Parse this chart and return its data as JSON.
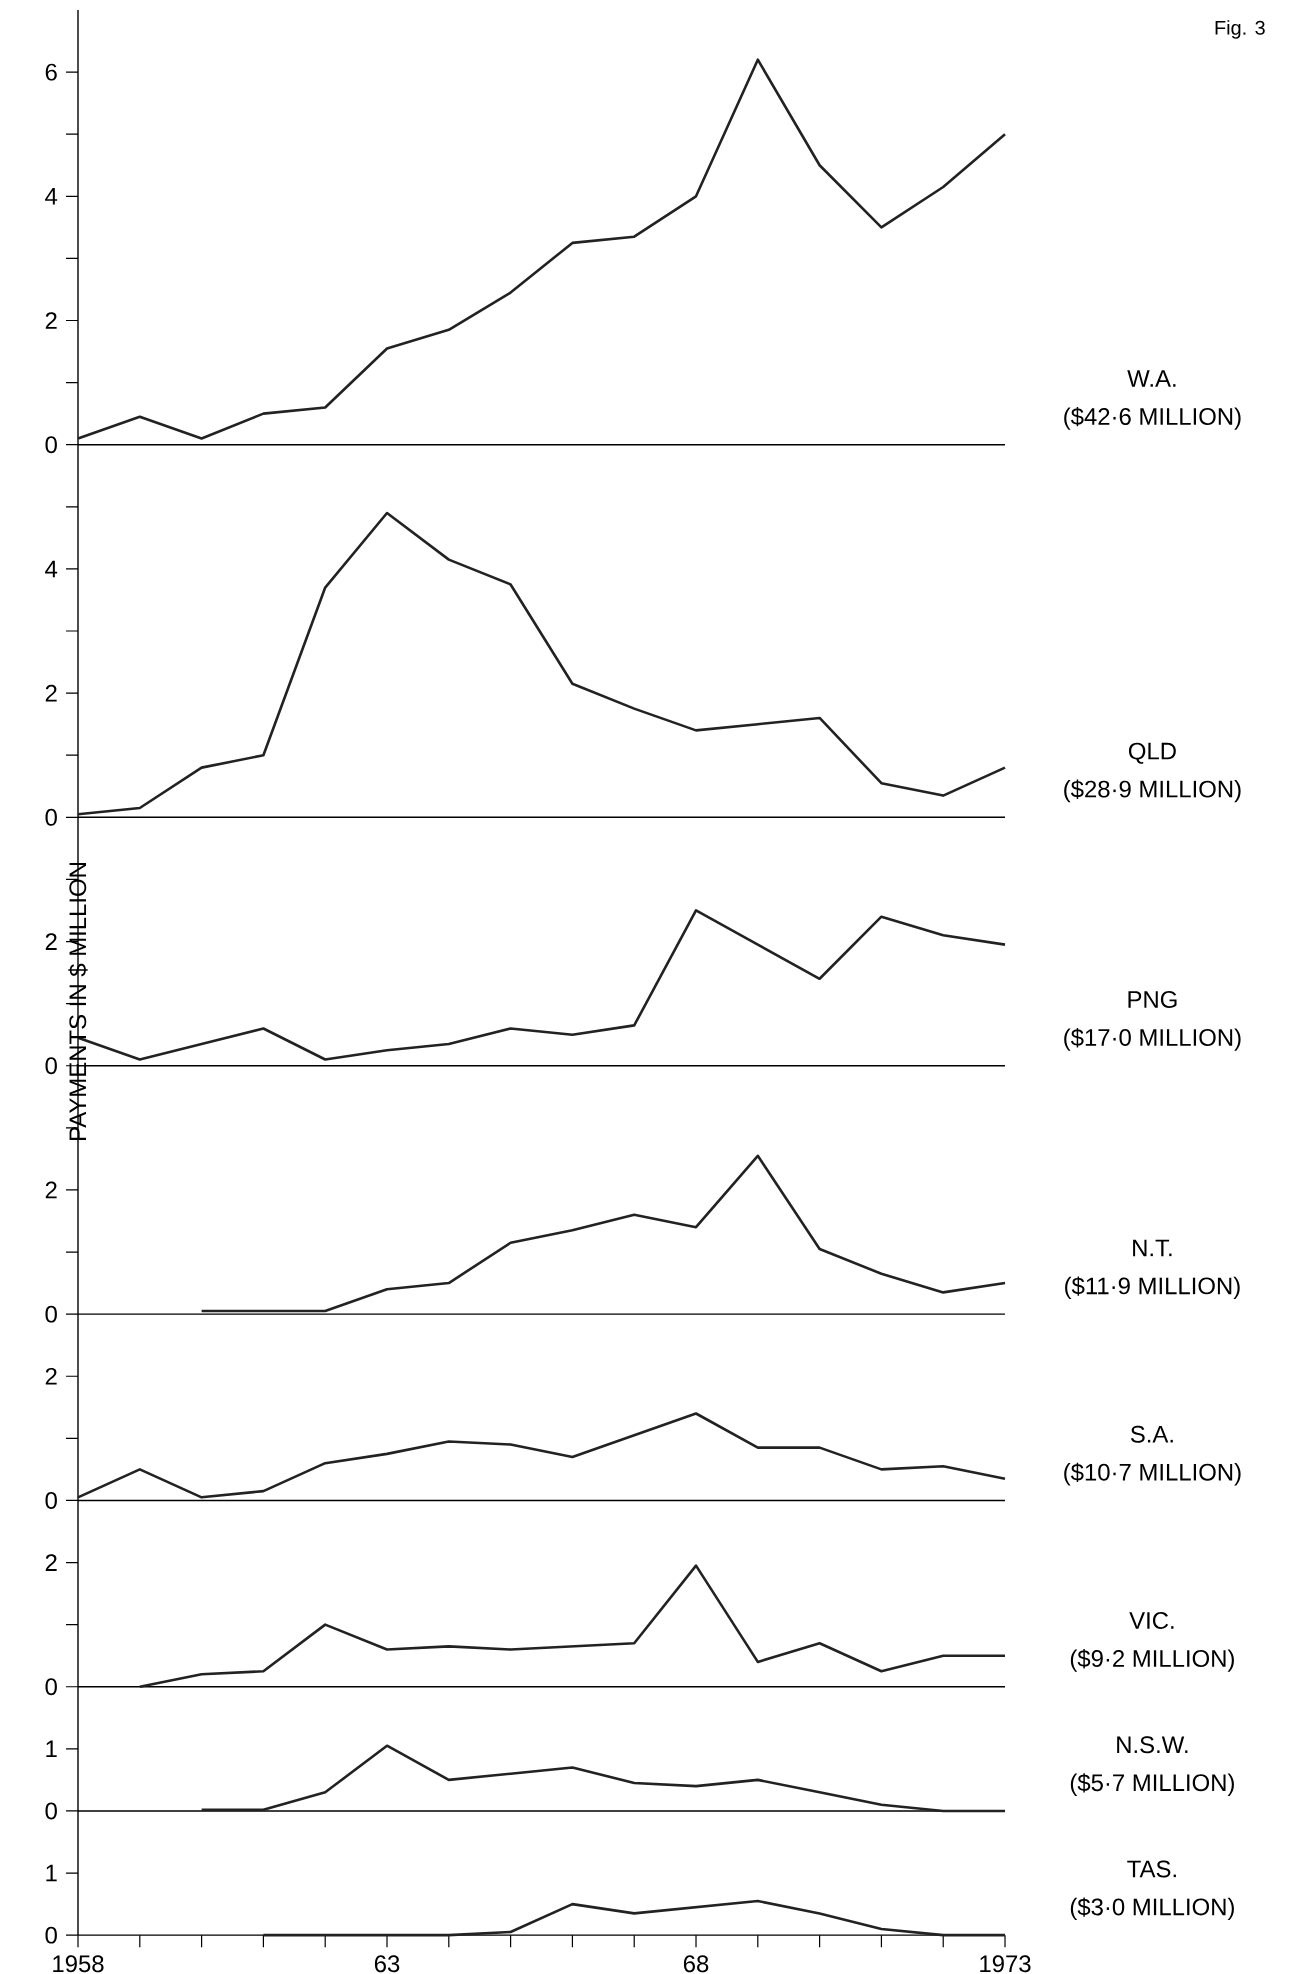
{
  "chart_data": [
    {
      "type": "line",
      "annotations": [
        "($42·6 MILLION)",
        "Fig. 3"
      ],
      "x": [
        1958,
        1959,
        1960,
        1961,
        1962,
        1963,
        1964,
        1965,
        1966,
        1967,
        1968,
        1969,
        1970,
        1971,
        1972,
        1973
      ],
      "series": [
        {
          "name": "W.A.",
          "color": "#222222",
          "values": [
            0.1,
            0.45,
            0.1,
            0.5,
            0.6,
            1.55,
            1.85,
            2.45,
            3.25,
            3.35,
            4.0,
            6.2,
            4.5,
            3.5,
            4.15,
            5.0
          ]
        }
      ],
      "xlim": [
        1958,
        1973
      ],
      "ylim": [
        0,
        7
      ],
      "yticks": [
        0,
        {
          "value": 1,
          "label": null
        },
        2,
        {
          "value": 3,
          "label": null
        },
        4,
        {
          "value": 5,
          "label": null
        },
        6
      ],
      "tick_labels": "y"
    },
    {
      "type": "line",
      "annotations": [
        "($28·9 MILLION)"
      ],
      "x": [
        1958,
        1959,
        1960,
        1961,
        1962,
        1963,
        1964,
        1965,
        1966,
        1967,
        1968,
        1969,
        1970,
        1971,
        1972,
        1973
      ],
      "series": [
        {
          "name": "QLD",
          "color": "#222222",
          "values": [
            0.05,
            0.15,
            0.8,
            1.0,
            3.7,
            4.9,
            4.15,
            3.75,
            2.15,
            1.75,
            1.4,
            1.5,
            1.6,
            0.55,
            0.35,
            0.8
          ]
        }
      ],
      "xlim": [
        1958,
        1973
      ],
      "ylim": [
        0,
        6
      ],
      "yticks": [
        0,
        {
          "value": 1,
          "label": null
        },
        2,
        {
          "value": 3,
          "label": null
        },
        4,
        {
          "value": 5,
          "label": null
        }
      ],
      "tick_labels": "y"
    },
    {
      "type": "line",
      "annotations": [
        "($17·0 MILLION)"
      ],
      "ylabel": "PAYMENTS IN $ MILLION",
      "x": [
        1958,
        1959,
        1960,
        1961,
        1962,
        1963,
        1964,
        1965,
        1966,
        1967,
        1968,
        1969,
        1970,
        1971,
        1972,
        1973
      ],
      "series": [
        {
          "name": "PNG",
          "color": "#222222",
          "values": [
            0.45,
            0.1,
            0.35,
            0.6,
            0.1,
            0.25,
            0.35,
            0.6,
            0.5,
            0.65,
            2.5,
            1.95,
            1.4,
            2.4,
            2.1,
            1.95
          ]
        }
      ],
      "xlim": [
        1958,
        1973
      ],
      "ylim": [
        0,
        4
      ],
      "yticks": [
        0,
        {
          "value": 1,
          "label": null
        },
        2,
        {
          "value": 3,
          "label": null
        }
      ],
      "tick_labels": "y"
    },
    {
      "type": "line",
      "annotations": [
        "($11·9 MILLION)"
      ],
      "x": [
        1960,
        1961,
        1962,
        1963,
        1964,
        1965,
        1966,
        1967,
        1968,
        1969,
        1970,
        1971,
        1972,
        1973
      ],
      "series": [
        {
          "name": "N.T.",
          "color": "#222222",
          "values": [
            0.05,
            0.05,
            0.05,
            0.4,
            0.5,
            1.15,
            1.35,
            1.6,
            1.4,
            2.55,
            1.05,
            0.65,
            0.35,
            0.5
          ]
        }
      ],
      "xlim": [
        1958,
        1973
      ],
      "ylim": [
        0,
        4
      ],
      "yticks": [
        0,
        {
          "value": 1,
          "label": null
        },
        2,
        {
          "value": 3,
          "label": null
        }
      ],
      "tick_labels": "y"
    },
    {
      "type": "line",
      "annotations": [
        "($10·7 MILLION)"
      ],
      "x": [
        1958,
        1959,
        1960,
        1961,
        1962,
        1963,
        1964,
        1965,
        1966,
        1967,
        1968,
        1969,
        1970,
        1971,
        1972,
        1973
      ],
      "series": [
        {
          "name": "S.A.",
          "color": "#222222",
          "values": [
            0.05,
            0.5,
            0.05,
            0.15,
            0.6,
            0.75,
            0.95,
            0.9,
            0.7,
            1.05,
            1.4,
            0.85,
            0.85,
            0.5,
            0.55,
            0.35
          ]
        }
      ],
      "xlim": [
        1958,
        1973
      ],
      "ylim": [
        0,
        3
      ],
      "yticks": [
        0,
        {
          "value": 1,
          "label": null
        },
        2
      ],
      "tick_labels": "y"
    },
    {
      "type": "line",
      "annotations": [
        "($9·2 MILLION)"
      ],
      "x": [
        1959,
        1960,
        1961,
        1962,
        1963,
        1964,
        1965,
        1966,
        1967,
        1968,
        1969,
        1970,
        1971,
        1972,
        1973
      ],
      "series": [
        {
          "name": "VIC.",
          "color": "#222222",
          "values": [
            0.0,
            0.2,
            0.25,
            1.0,
            0.6,
            0.65,
            0.6,
            0.65,
            0.7,
            1.95,
            0.4,
            0.7,
            0.25,
            0.5,
            0.5
          ]
        }
      ],
      "xlim": [
        1958,
        1973
      ],
      "ylim": [
        0,
        3
      ],
      "yticks": [
        0,
        {
          "value": 1,
          "label": null
        },
        2
      ],
      "tick_labels": "y"
    },
    {
      "type": "line",
      "annotations": [
        "($5·7 MILLION)"
      ],
      "x": [
        1960,
        1961,
        1962,
        1963,
        1964,
        1965,
        1966,
        1967,
        1968,
        1969,
        1970,
        1971,
        1972,
        1973
      ],
      "series": [
        {
          "name": "N.S.W.",
          "color": "#222222",
          "values": [
            0.02,
            0.02,
            0.3,
            1.05,
            0.5,
            0.6,
            0.7,
            0.45,
            0.4,
            0.5,
            0.3,
            0.1,
            0.0,
            0.0
          ]
        }
      ],
      "xlim": [
        1958,
        1973
      ],
      "ylim": [
        0,
        2
      ],
      "yticks": [
        0,
        1
      ],
      "tick_labels": "y"
    },
    {
      "type": "line",
      "annotations": [
        "($3·0 MILLION)"
      ],
      "x": [
        1961,
        1962,
        1963,
        1964,
        1965,
        1966,
        1967,
        1968,
        1969,
        1970,
        1971,
        1972,
        1973
      ],
      "series": [
        {
          "name": "TAS.",
          "color": "#222222",
          "values": [
            0.0,
            0.0,
            0.0,
            0.0,
            0.05,
            0.5,
            0.35,
            0.45,
            0.55,
            0.35,
            0.1,
            0.0,
            0.0
          ]
        }
      ],
      "xlim": [
        1958,
        1973
      ],
      "ylim": [
        0,
        2
      ],
      "yticks": [
        0,
        1
      ],
      "xticks": [
        1958,
        {
          "value": 1959,
          "label": null
        },
        {
          "value": 1960,
          "label": null
        },
        {
          "value": 1961,
          "label": null
        },
        {
          "value": 1962,
          "label": null
        },
        {
          "value": 1963,
          "label": "63"
        },
        {
          "value": 1964,
          "label": null
        },
        {
          "value": 1965,
          "label": null
        },
        {
          "value": 1966,
          "label": null
        },
        {
          "value": 1967,
          "label": null
        },
        {
          "value": 1968,
          "label": "68"
        },
        {
          "value": 1969,
          "label": null
        },
        {
          "value": 1970,
          "label": null
        },
        {
          "value": 1971,
          "label": null
        },
        {
          "value": 1972,
          "label": null
        },
        1973
      ]
    }
  ]
}
